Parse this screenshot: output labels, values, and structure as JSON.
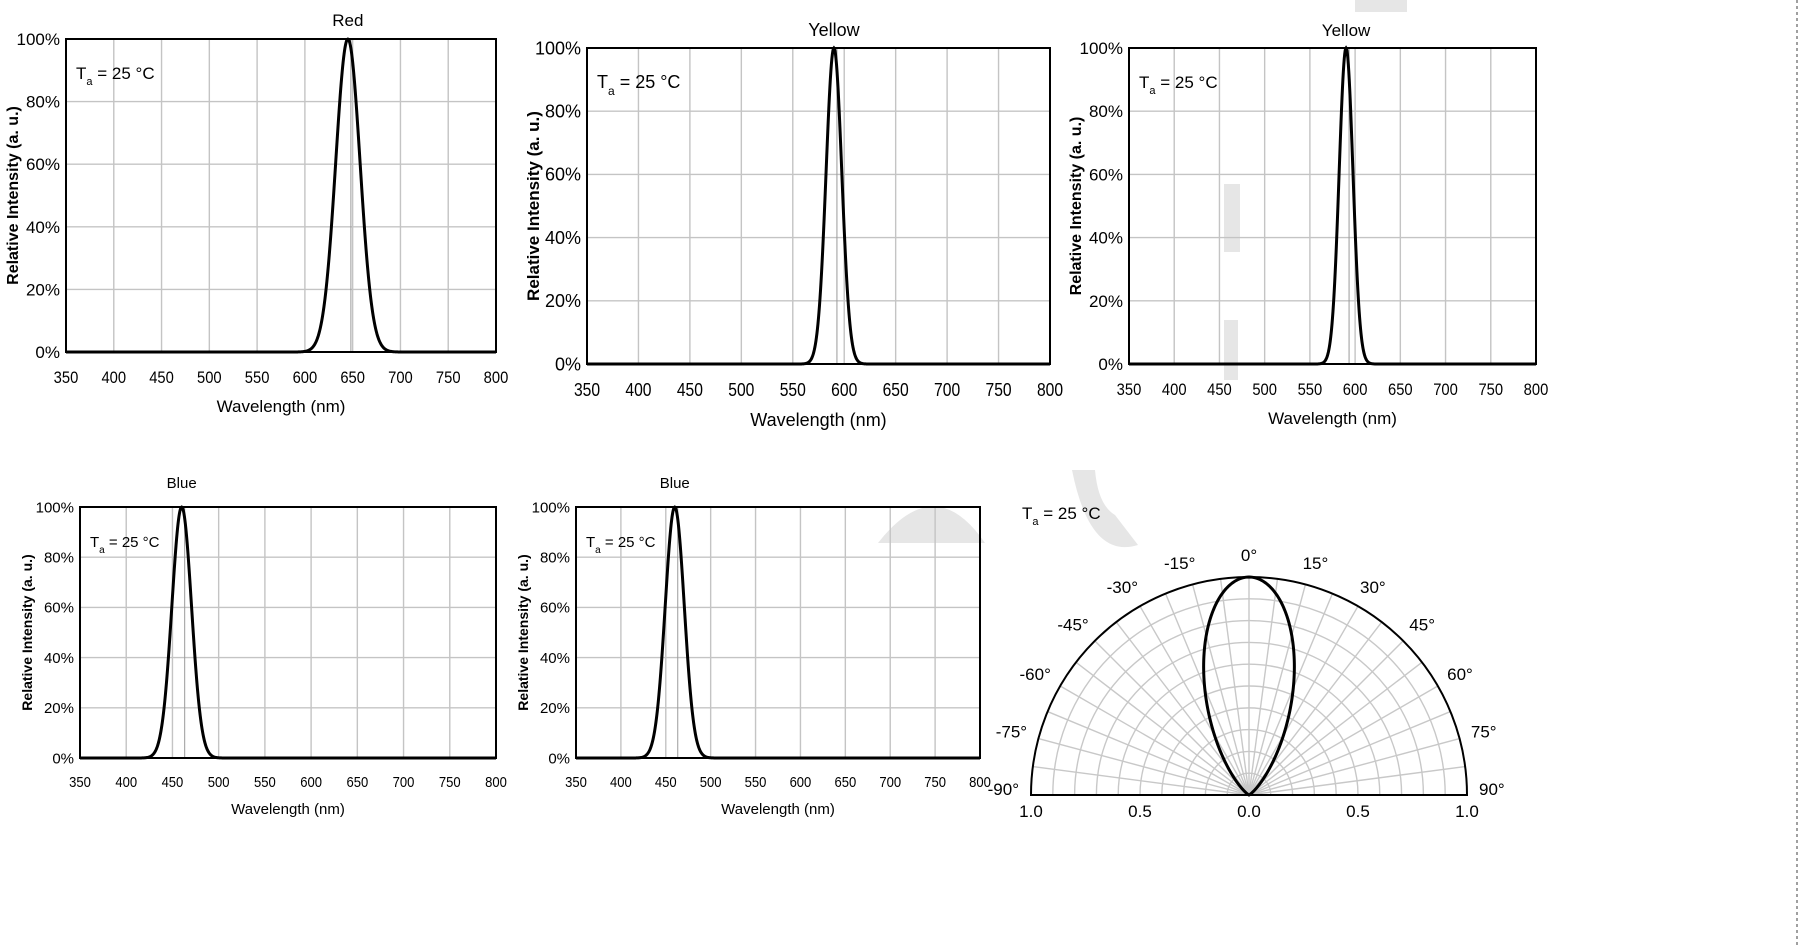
{
  "chart_data": [
    {
      "type": "line",
      "title": "Red",
      "note": "T_a = 25 °C",
      "xlabel": "Wavelength (nm)",
      "ylabel": "Relative Intensity (a. u.)",
      "xlim": [
        350,
        800
      ],
      "xticks": [
        "350",
        "400",
        "450",
        "500",
        "550",
        "600",
        "650",
        "700",
        "750",
        "800"
      ],
      "ylim": [
        0,
        100
      ],
      "yticks": [
        "0%",
        "20%",
        "40%",
        "60%",
        "80%",
        "100%"
      ],
      "grid": true,
      "series": [
        {
          "peak": 645,
          "fwhm": 30
        }
      ]
    },
    {
      "type": "line",
      "title": "Yellow",
      "note": "T_a = 25 °C",
      "xlabel": "Wavelength (nm)",
      "ylabel": "Relative Intensity (a. u.)",
      "xlim": [
        350,
        800
      ],
      "xticks": [
        "350",
        "400",
        "450",
        "500",
        "550",
        "600",
        "650",
        "700",
        "750",
        "800"
      ],
      "ylim": [
        0,
        100
      ],
      "yticks": [
        "0%",
        "20%",
        "40%",
        "60%",
        "80%",
        "100%"
      ],
      "grid": true,
      "series": [
        {
          "peak": 590,
          "fwhm": 18
        }
      ]
    },
    {
      "type": "line",
      "title": "Yellow",
      "note": "T_a = 25 °C",
      "xlabel": "Wavelength (nm)",
      "ylabel": "Relative Intensity (a. u.)",
      "xlim": [
        350,
        800
      ],
      "xticks": [
        "350",
        "400",
        "450",
        "500",
        "550",
        "600",
        "650",
        "700",
        "750",
        "800"
      ],
      "ylim": [
        0,
        100
      ],
      "yticks": [
        "0%",
        "20%",
        "40%",
        "60%",
        "80%",
        "100%"
      ],
      "grid": true,
      "series": [
        {
          "peak": 590,
          "fwhm": 18
        }
      ]
    },
    {
      "type": "line",
      "title": "Blue",
      "note": "T_a = 25 °C",
      "xlabel": "Wavelength (nm)",
      "ylabel": "Relative Intensity (a. u.)",
      "xlim": [
        350,
        800
      ],
      "xticks": [
        "350",
        "400",
        "450",
        "500",
        "550",
        "600",
        "650",
        "700",
        "750",
        "800"
      ],
      "ylim": [
        0,
        100
      ],
      "yticks": [
        "0%",
        "20%",
        "40%",
        "60%",
        "80%",
        "100%"
      ],
      "grid": true,
      "series": [
        {
          "peak": 460,
          "fwhm": 25
        }
      ]
    },
    {
      "type": "line",
      "title": "Blue",
      "note": "T_a = 25 °C",
      "xlabel": "Wavelength (nm)",
      "ylabel": "Relative Intensity (a. u.)",
      "xlim": [
        350,
        800
      ],
      "xticks": [
        "350",
        "400",
        "450",
        "500",
        "550",
        "600",
        "650",
        "700",
        "750",
        "800"
      ],
      "ylim": [
        0,
        100
      ],
      "yticks": [
        "0%",
        "20%",
        "40%",
        "60%",
        "80%",
        "100%"
      ],
      "grid": true,
      "series": [
        {
          "peak": 460,
          "fwhm": 25
        }
      ]
    },
    {
      "type": "polar",
      "title": "",
      "note": "T_a = 25 °C",
      "angle_labels": [
        {
          "deg": -90,
          "text": "-90°"
        },
        {
          "deg": -75,
          "text": "-75°"
        },
        {
          "deg": -60,
          "text": "-60°"
        },
        {
          "deg": -45,
          "text": "-45°"
        },
        {
          "deg": -30,
          "text": "-30°"
        },
        {
          "deg": -15,
          "text": "-15°"
        },
        {
          "deg": 0,
          "text": "0°"
        },
        {
          "deg": 15,
          "text": "15°"
        },
        {
          "deg": 30,
          "text": "30°"
        },
        {
          "deg": 45,
          "text": "45°"
        },
        {
          "deg": 60,
          "text": "60°"
        },
        {
          "deg": 75,
          "text": "75°"
        },
        {
          "deg": 90,
          "text": "90°"
        }
      ],
      "radial_labels": [
        "1.0",
        "0.5",
        "0.0",
        "0.5",
        "1.0"
      ],
      "rlim": [
        0,
        1.0
      ],
      "ring_step": 0.1,
      "spoke_step_deg": 7.5,
      "grid": true,
      "pattern": {
        "half_intensity_angle_deg": 15,
        "exponent": 8
      }
    }
  ]
}
